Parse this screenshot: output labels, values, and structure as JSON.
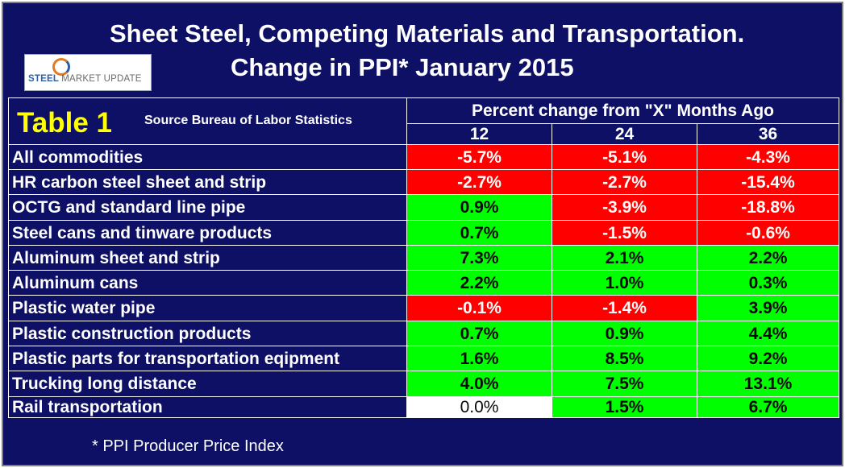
{
  "title_line1": "Sheet Steel, Competing Materials and Transportation.",
  "title_line2": "Change in PPI* January 2015",
  "logo": {
    "brand": "STEEL",
    "name": "MARKET UPDATE"
  },
  "table_label": "Table 1",
  "source": "Source Bureau of Labor Statistics",
  "footnote": "* PPI  Producer Price Index",
  "colors": {
    "background": "#0d1065",
    "negative": "#ff0000",
    "positive": "#00ff00",
    "neutral": "#ffffff",
    "table_label": "#ffff00"
  },
  "chart_data": {
    "type": "table",
    "title": "Sheet Steel, Competing Materials and Transportation. Change in PPI* January 2015",
    "column_group": "Percent change from \"X\" Months Ago",
    "columns": [
      "12",
      "24",
      "36"
    ],
    "rows": [
      {
        "label": "All commodities",
        "values": [
          "-5.7%",
          "-5.1%",
          "-4.3%"
        ],
        "colors": [
          "red",
          "red",
          "red"
        ]
      },
      {
        "label": "HR carbon steel sheet and strip",
        "values": [
          "-2.7%",
          "-2.7%",
          "-15.4%"
        ],
        "colors": [
          "red",
          "red",
          "red"
        ]
      },
      {
        "label": "OCTG and standard line pipe",
        "values": [
          "0.9%",
          "-3.9%",
          "-18.8%"
        ],
        "colors": [
          "green",
          "red",
          "red"
        ]
      },
      {
        "label": "Steel cans and tinware products",
        "values": [
          "0.7%",
          "-1.5%",
          "-0.6%"
        ],
        "colors": [
          "green",
          "red",
          "red"
        ]
      },
      {
        "label": "Aluminum sheet and strip",
        "values": [
          "7.3%",
          "2.1%",
          "2.2%"
        ],
        "colors": [
          "green",
          "green",
          "green"
        ]
      },
      {
        "label": "Aluminum cans",
        "values": [
          "2.2%",
          "1.0%",
          "0.3%"
        ],
        "colors": [
          "green",
          "green",
          "green"
        ]
      },
      {
        "label": "Plastic water pipe",
        "values": [
          "-0.1%",
          "-1.4%",
          "3.9%"
        ],
        "colors": [
          "red",
          "red",
          "green"
        ]
      },
      {
        "label": "Plastic construction products",
        "values": [
          "0.7%",
          "0.9%",
          "4.4%"
        ],
        "colors": [
          "green",
          "green",
          "green"
        ]
      },
      {
        "label": "Plastic parts for transportation eqipment",
        "values": [
          "1.6%",
          "8.5%",
          "9.2%"
        ],
        "colors": [
          "green",
          "green",
          "green"
        ]
      },
      {
        "label": "Trucking long distance",
        "values": [
          "4.0%",
          "7.5%",
          "13.1%"
        ],
        "colors": [
          "green",
          "green",
          "green"
        ]
      },
      {
        "label": "Rail transportation",
        "values": [
          "0.0%",
          "1.5%",
          "6.7%"
        ],
        "colors": [
          "white",
          "green",
          "green"
        ]
      }
    ]
  }
}
